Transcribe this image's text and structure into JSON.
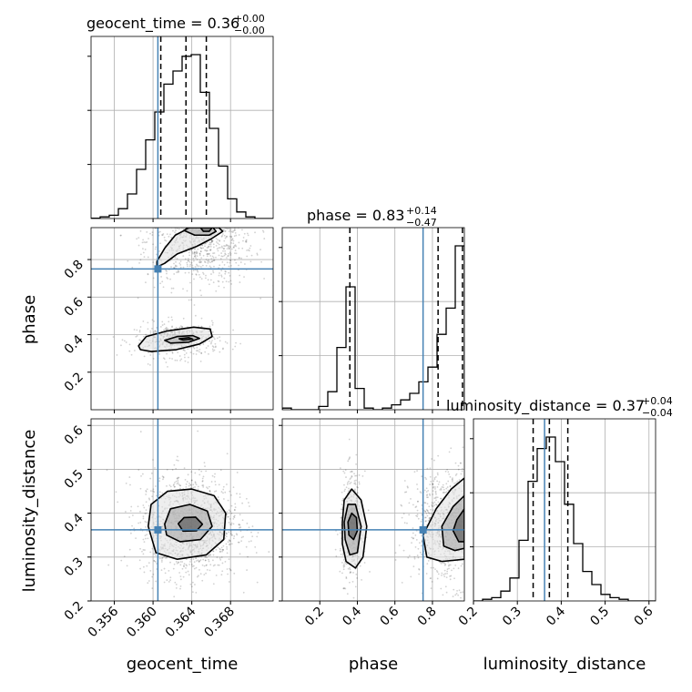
{
  "chart_data": {
    "type": "corner",
    "parameters": [
      "geocent_time",
      "phase",
      "luminosity_distance"
    ],
    "truths": {
      "geocent_time": 0.3605,
      "phase": 0.75,
      "luminosity_distance": 0.362
    },
    "titles": {
      "geocent_time": {
        "text": "geocent_time = 0.36",
        "plus": "+0.00",
        "minus": "−0.00"
      },
      "phase": {
        "text": "phase = 0.83",
        "plus": "+0.14",
        "minus": "−0.47"
      },
      "luminosity_distance": {
        "text": "luminosity_distance = 0.37",
        "plus": "+0.04",
        "minus": "−0.04"
      }
    },
    "axis_labels": {
      "x": [
        "geocent_time",
        "phase",
        "luminosity_distance"
      ],
      "y": [
        "phase",
        "luminosity_distance"
      ]
    },
    "ranges": {
      "geocent_time": [
        0.3536,
        0.3724
      ],
      "phase": [
        0.0,
        0.97
      ],
      "luminosity_distance": [
        0.2,
        0.615
      ]
    },
    "ticks": {
      "geocent_time": {
        "values": [
          0.356,
          0.36,
          0.364,
          0.368
        ],
        "labels": [
          "0.356",
          "0.360",
          "0.364",
          "0.368"
        ]
      },
      "phase": {
        "values": [
          0.2,
          0.4,
          0.6,
          0.8
        ],
        "labels": [
          "0.2",
          "0.4",
          "0.6",
          "0.8"
        ]
      },
      "luminosity_distance": {
        "values": [
          0.2,
          0.3,
          0.4,
          0.5,
          0.6
        ],
        "labels": [
          "0.2",
          "0.3",
          "0.4",
          "0.5",
          "0.6"
        ]
      }
    },
    "quantiles": {
      "geocent_time": [
        0.3608,
        0.3634,
        0.3655
      ],
      "phase": [
        0.36,
        0.83,
        0.96
      ],
      "luminosity_distance": [
        0.336,
        0.373,
        0.415
      ]
    },
    "histograms": {
      "geocent_time": {
        "edges": [
          0.3536,
          0.35454,
          0.35548,
          0.35642,
          0.35736,
          0.3583,
          0.35924,
          0.36018,
          0.36112,
          0.36206,
          0.363,
          0.36394,
          0.36488,
          0.36582,
          0.36676,
          0.3677,
          0.36864,
          0.36958,
          0.37052,
          0.37146,
          0.3724
        ],
        "counts": [
          0.002,
          0.01,
          0.02,
          0.06,
          0.15,
          0.3,
          0.48,
          0.65,
          0.82,
          0.9,
          0.99,
          1.0,
          0.77,
          0.55,
          0.32,
          0.12,
          0.04,
          0.01,
          0.0,
          0.0
        ]
      },
      "phase": {
        "edges": [
          0.0,
          0.0485,
          0.097,
          0.1455,
          0.194,
          0.2425,
          0.291,
          0.3395,
          0.388,
          0.4365,
          0.485,
          0.5335,
          0.582,
          0.6305,
          0.679,
          0.7275,
          0.776,
          0.8245,
          0.873,
          0.9215,
          0.97
        ],
        "counts": [
          0.01,
          0.0,
          0.0,
          0.0,
          0.02,
          0.11,
          0.38,
          0.75,
          0.13,
          0.01,
          0.0,
          0.01,
          0.03,
          0.06,
          0.1,
          0.17,
          0.26,
          0.46,
          0.62,
          1.0
        ]
      },
      "luminosity_distance": {
        "edges": [
          0.2,
          0.22075,
          0.2415,
          0.26225,
          0.283,
          0.30375,
          0.3245,
          0.34525,
          0.366,
          0.38675,
          0.4075,
          0.42825,
          0.449,
          0.46975,
          0.4905,
          0.51125,
          0.532,
          0.55275,
          0.5735,
          0.59425,
          0.615
        ],
        "counts": [
          0.0,
          0.01,
          0.02,
          0.06,
          0.14,
          0.37,
          0.73,
          0.93,
          1.0,
          0.85,
          0.59,
          0.35,
          0.18,
          0.1,
          0.04,
          0.02,
          0.01,
          0.0,
          0.0,
          0.0
        ]
      }
    },
    "contours": {
      "phase_vs_geocent_time": [
        {
          "level": "outer",
          "points": [
            [
              0.3604,
              0.79
            ],
            [
              0.3612,
              0.86
            ],
            [
              0.3623,
              0.93
            ],
            [
              0.3638,
              0.97
            ],
            [
              0.3668,
              0.97
            ],
            [
              0.3672,
              0.95
            ],
            [
              0.366,
              0.91
            ],
            [
              0.3645,
              0.87
            ],
            [
              0.3625,
              0.83
            ],
            [
              0.3612,
              0.78
            ],
            [
              0.3604,
              0.76
            ]
          ]
        },
        {
          "level": "middle",
          "points": [
            [
              0.3632,
              0.955
            ],
            [
              0.3643,
              0.93
            ],
            [
              0.3658,
              0.93
            ],
            [
              0.3665,
              0.95
            ],
            [
              0.3662,
              0.97
            ],
            [
              0.3636,
              0.97
            ]
          ]
        },
        {
          "level": "inner",
          "points": [
            [
              0.3649,
              0.97
            ],
            [
              0.3652,
              0.95
            ],
            [
              0.3658,
              0.95
            ],
            [
              0.3661,
              0.97
            ]
          ]
        },
        {
          "level": "outer",
          "points": [
            [
              0.3585,
              0.34
            ],
            [
              0.3593,
              0.39
            ],
            [
              0.3615,
              0.42
            ],
            [
              0.3642,
              0.44
            ],
            [
              0.3659,
              0.43
            ],
            [
              0.3661,
              0.39
            ],
            [
              0.3648,
              0.35
            ],
            [
              0.3624,
              0.32
            ],
            [
              0.3598,
              0.31
            ],
            [
              0.3587,
              0.32
            ]
          ]
        },
        {
          "level": "middle",
          "points": [
            [
              0.3612,
              0.37
            ],
            [
              0.3625,
              0.39
            ],
            [
              0.3641,
              0.395
            ],
            [
              0.3648,
              0.38
            ],
            [
              0.3637,
              0.36
            ],
            [
              0.3618,
              0.355
            ]
          ]
        },
        {
          "level": "inner",
          "points": [
            [
              0.3627,
              0.378
            ],
            [
              0.3637,
              0.384
            ],
            [
              0.3641,
              0.376
            ],
            [
              0.3631,
              0.371
            ]
          ]
        }
      ],
      "luminosity_distance_vs_geocent_time": [
        {
          "level": "outer",
          "points": [
            [
              0.3595,
              0.37
            ],
            [
              0.3598,
              0.42
            ],
            [
              0.3615,
              0.45
            ],
            [
              0.364,
              0.455
            ],
            [
              0.3663,
              0.44
            ],
            [
              0.3675,
              0.4
            ],
            [
              0.3673,
              0.34
            ],
            [
              0.3655,
              0.305
            ],
            [
              0.3625,
              0.295
            ],
            [
              0.3603,
              0.31
            ]
          ]
        },
        {
          "level": "middle",
          "points": [
            [
              0.3612,
              0.375
            ],
            [
              0.3618,
              0.41
            ],
            [
              0.3638,
              0.42
            ],
            [
              0.3656,
              0.405
            ],
            [
              0.3661,
              0.37
            ],
            [
              0.3649,
              0.34
            ],
            [
              0.3628,
              0.335
            ],
            [
              0.3614,
              0.35
            ]
          ]
        },
        {
          "level": "inner",
          "points": [
            [
              0.3626,
              0.376
            ],
            [
              0.3632,
              0.39
            ],
            [
              0.3644,
              0.391
            ],
            [
              0.3651,
              0.375
            ],
            [
              0.3645,
              0.36
            ],
            [
              0.3631,
              0.359
            ]
          ]
        }
      ],
      "luminosity_distance_vs_phase": [
        {
          "level": "outer",
          "points": [
            [
              0.32,
              0.38
            ],
            [
              0.33,
              0.43
            ],
            [
              0.37,
              0.455
            ],
            [
              0.42,
              0.43
            ],
            [
              0.45,
              0.37
            ],
            [
              0.43,
              0.3
            ],
            [
              0.39,
              0.275
            ],
            [
              0.34,
              0.29
            ],
            [
              0.32,
              0.33
            ]
          ]
        },
        {
          "level": "middle",
          "points": [
            [
              0.33,
              0.38
            ],
            [
              0.35,
              0.42
            ],
            [
              0.39,
              0.42
            ],
            [
              0.42,
              0.37
            ],
            [
              0.4,
              0.31
            ],
            [
              0.36,
              0.305
            ],
            [
              0.335,
              0.34
            ]
          ]
        },
        {
          "level": "inner",
          "points": [
            [
              0.35,
              0.38
            ],
            [
              0.37,
              0.4
            ],
            [
              0.395,
              0.39
            ],
            [
              0.4,
              0.36
            ],
            [
              0.38,
              0.34
            ],
            [
              0.355,
              0.35
            ]
          ]
        },
        {
          "level": "outer",
          "points": [
            [
              0.97,
              0.48
            ],
            [
              0.9,
              0.455
            ],
            [
              0.82,
              0.41
            ],
            [
              0.75,
              0.35
            ],
            [
              0.77,
              0.3
            ],
            [
              0.85,
              0.29
            ],
            [
              0.97,
              0.295
            ]
          ]
        },
        {
          "level": "middle",
          "points": [
            [
              0.97,
              0.44
            ],
            [
              0.91,
              0.415
            ],
            [
              0.85,
              0.37
            ],
            [
              0.86,
              0.325
            ],
            [
              0.92,
              0.315
            ],
            [
              0.97,
              0.32
            ]
          ]
        },
        {
          "level": "inner",
          "points": [
            [
              0.97,
              0.41
            ],
            [
              0.93,
              0.385
            ],
            [
              0.91,
              0.36
            ],
            [
              0.94,
              0.335
            ],
            [
              0.97,
              0.335
            ]
          ]
        }
      ]
    },
    "sample_clouds": {
      "phase_vs_geocent_time": [
        {
          "cx": 0.3648,
          "cy": 0.9,
          "sx": 0.0028,
          "sy": 0.12,
          "n": 900
        },
        {
          "cx": 0.3625,
          "cy": 0.37,
          "sx": 0.0022,
          "sy": 0.045,
          "n": 450
        }
      ],
      "luminosity_distance_vs_geocent_time": [
        {
          "cx": 0.3637,
          "cy": 0.372,
          "sx": 0.0025,
          "sy": 0.06,
          "n": 1300
        }
      ],
      "luminosity_distance_vs_phase": [
        {
          "cx": 0.37,
          "cy": 0.37,
          "sx": 0.03,
          "sy": 0.06,
          "n": 450
        },
        {
          "cx": 0.88,
          "cy": 0.37,
          "sx": 0.1,
          "sy": 0.065,
          "n": 850
        }
      ]
    },
    "grid": true,
    "truth_color": "#4682b4"
  }
}
